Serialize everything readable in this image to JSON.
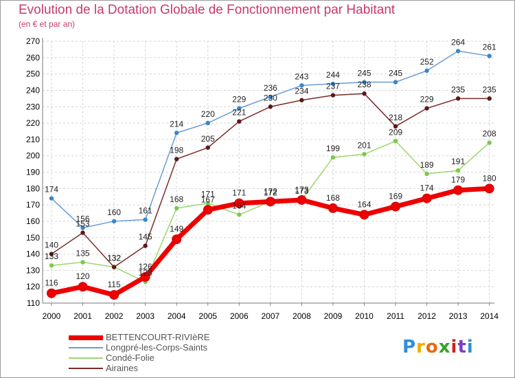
{
  "title": "Evolution de la Dotation Globale de Fonctionnement par Habitant",
  "subtitle": "(en € et par an)",
  "brand": {
    "letters": [
      "P",
      "r",
      "o",
      "x",
      "i",
      "t",
      "i"
    ],
    "colors": [
      "#2f8fd8",
      "#e8b000",
      "#e86a10",
      "#3aa02a",
      "#d02020",
      "#7a40c0",
      "#2f8fd8"
    ]
  },
  "chart_data": {
    "type": "line",
    "x": [
      "2000",
      "2001",
      "2002",
      "2003",
      "2004",
      "2005",
      "2006",
      "2007",
      "2008",
      "2009",
      "2010",
      "2011",
      "2012",
      "2013",
      "2014"
    ],
    "ylim": [
      110,
      270
    ],
    "yticks": [
      110,
      120,
      130,
      140,
      150,
      160,
      170,
      180,
      190,
      200,
      210,
      220,
      230,
      240,
      250,
      260,
      270
    ],
    "grid": true,
    "legend_position": "bottom-left",
    "series": [
      {
        "name": "Longpré-les-Corps-Saints",
        "color": "#6a9ad8",
        "marker": "#3b86c8",
        "width": 1.5,
        "values": [
          174,
          156,
          160,
          161,
          214,
          220,
          229,
          236,
          243,
          244,
          245,
          245,
          252,
          264,
          261
        ]
      },
      {
        "name": "Condé-Folie",
        "color": "#9ad870",
        "marker": "#7cc84e",
        "width": 1.5,
        "values": [
          133,
          135,
          132,
          123,
          168,
          171,
          164,
          172,
          173,
          199,
          201,
          209,
          189,
          191,
          208
        ]
      },
      {
        "name": "Airaines",
        "color": "#7a2a2a",
        "marker": "#5a1a1a",
        "width": 1.5,
        "values": [
          140,
          153,
          132,
          145,
          198,
          205,
          221,
          230,
          234,
          237,
          238,
          218,
          229,
          235,
          235
        ]
      },
      {
        "name": "BETTENCOURT-RIVIèRE",
        "color": "#ee0000",
        "marker": "#ee0000",
        "width": 7,
        "values": [
          116,
          120,
          115,
          126,
          149,
          167,
          171,
          172,
          173,
          168,
          164,
          169,
          174,
          179,
          180
        ]
      }
    ]
  },
  "legend": [
    {
      "label": "BETTENCOURT-RIVIèRE",
      "color": "#ee0000",
      "thickness": 7
    },
    {
      "label": "Longpré-les-Corps-Saints",
      "color": "#6a9ad8",
      "thickness": 2
    },
    {
      "label": "Condé-Folie",
      "color": "#9ad870",
      "thickness": 2
    },
    {
      "label": "Airaines",
      "color": "#7a2a2a",
      "thickness": 2
    }
  ]
}
